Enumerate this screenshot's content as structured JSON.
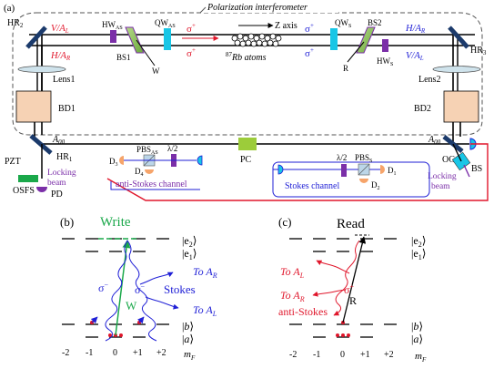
{
  "top": {
    "panel_label": "(a)",
    "box_title": "Polarization interferometer",
    "hr2": "HR",
    "hr2_sub": "2",
    "hr3": "HR",
    "hr3_sub": "3",
    "hr1": "HR",
    "hr1_sub": "1",
    "va_left": "V/A",
    "va_left_sub": "L",
    "ha_left": "H/A",
    "ha_left_sub": "R",
    "ha_right": "H/A",
    "ha_right_sub": "R",
    "va_right": "V/A",
    "va_right_sub": "L",
    "hw_as": "HW",
    "hw_as_sub": "AS",
    "qw_as": "QW",
    "qw_as_sub": "AS",
    "qw_s": "QW",
    "qw_s_sub": "S",
    "hw_s": "HW",
    "hw_s_sub": "S",
    "bs1": "BS1",
    "bs2": "BS2",
    "w": "W",
    "r": "R",
    "z_axis": "Z axis",
    "atoms_prefix": "87",
    "atoms": "Rb atoms",
    "sigma_plus": "σ",
    "plus": "+",
    "lens1": "Lens1",
    "lens2": "Lens2",
    "bd1": "BD1",
    "bd2": "BD2",
    "a_inf": "A",
    "a_inf_sub": "00",
    "pzt": "PZT",
    "pc": "PC",
    "oc": "OC",
    "bs": "BS",
    "osfs": "OSFS",
    "pd": "PD",
    "locking_beam": "Locking beam",
    "pbs_as": "PBS",
    "pbs_as_sub": "AS",
    "pbs_s": "PBS",
    "pbs_s_sub": "S",
    "lambda2": "λ/2",
    "d1": "D",
    "d1_sub": "1",
    "d2": "D",
    "d2_sub": "2",
    "d3": "D",
    "d3_sub": "3",
    "d4": "D",
    "d4_sub": "4",
    "anti_stokes_channel": "anti-Stokes  channel",
    "stokes_channel": "Stokes  channel",
    "colors": {
      "blue": "#1f1fd6",
      "red": "#e0162b",
      "purple": "#7b2fa8",
      "green": "#1aa84a",
      "cyan": "#18c6e6",
      "peach": "#f6d2b4",
      "lime": "#9ccc3a"
    }
  },
  "write_panel": {
    "label": "(b)",
    "title": "Write",
    "e2": "e",
    "e2_sub": "2",
    "e1": "e",
    "e1_sub": "1",
    "b": "b",
    "a": "a",
    "sigma_minus": "σ",
    "minus": "−",
    "stokes": "Stokes",
    "w": "W",
    "to_ar": "To A",
    "to_ar_sub": "R",
    "to_al": "To A",
    "to_al_sub": "L",
    "ticks": [
      "-2",
      "-1",
      "0",
      "+1",
      "+2"
    ],
    "mf": "m",
    "mf_sub": "F"
  },
  "read_panel": {
    "label": "(c)",
    "title": "Read",
    "e2": "e",
    "e2_sub": "2",
    "e1": "e",
    "e1_sub": "1",
    "b": "b",
    "a": "a",
    "sigma_plus": "σ",
    "plus": "+",
    "r": "R",
    "to_al": "To A",
    "to_al_sub": "L",
    "to_ar": "To A",
    "to_ar_sub": "R",
    "anti_stokes": "anti-Stokes",
    "ticks": [
      "-2",
      "-1",
      "0",
      "+1",
      "+2"
    ],
    "mf": "m",
    "mf_sub": "F"
  }
}
